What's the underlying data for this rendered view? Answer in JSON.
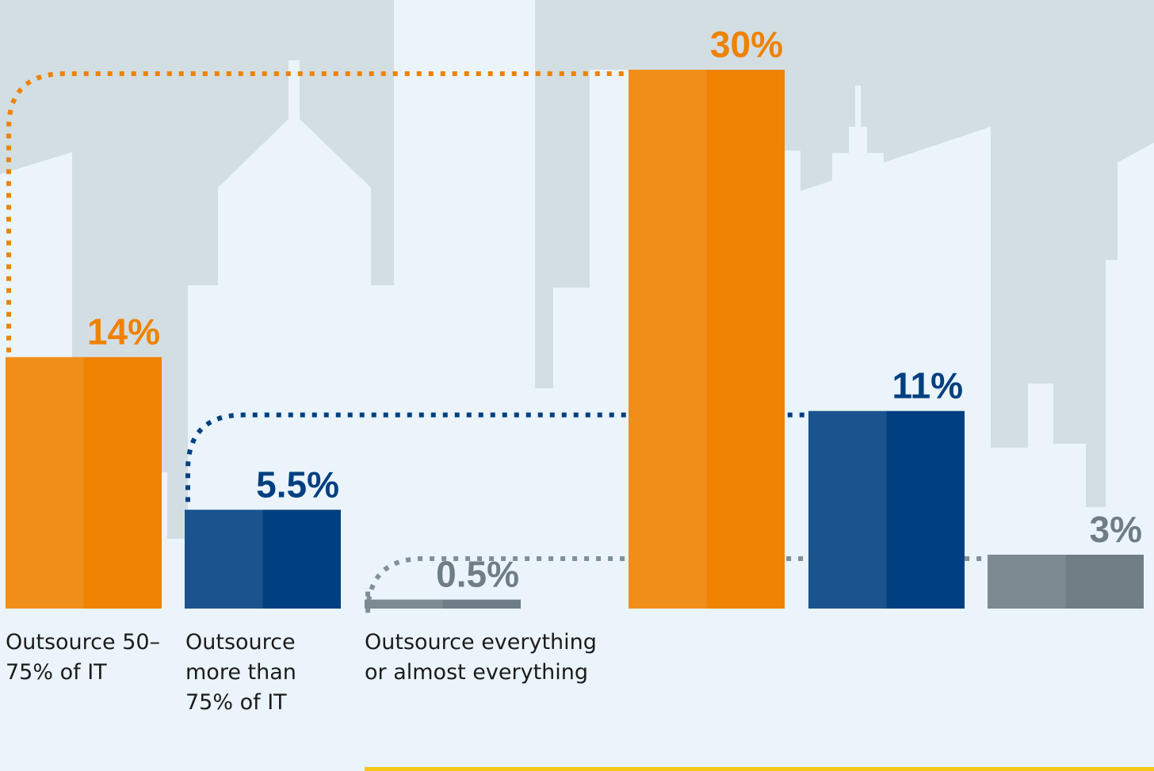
{
  "chart_data": {
    "type": "bar",
    "categories": [
      "Outsource 50–75% of IT",
      "Outsource more than 75% of IT",
      "Outsource everything or almost everything",
      null,
      null,
      null
    ],
    "values": [
      14,
      5.5,
      0.5,
      30,
      11,
      3
    ],
    "value_labels": [
      "14%",
      "5.5%",
      "0.5%",
      "30%",
      "11%",
      "3%"
    ],
    "colors": [
      "#ef8200",
      "#004080",
      "#6f7d85",
      "#ef8200",
      "#004080",
      "#6f7d85"
    ]
  }
}
